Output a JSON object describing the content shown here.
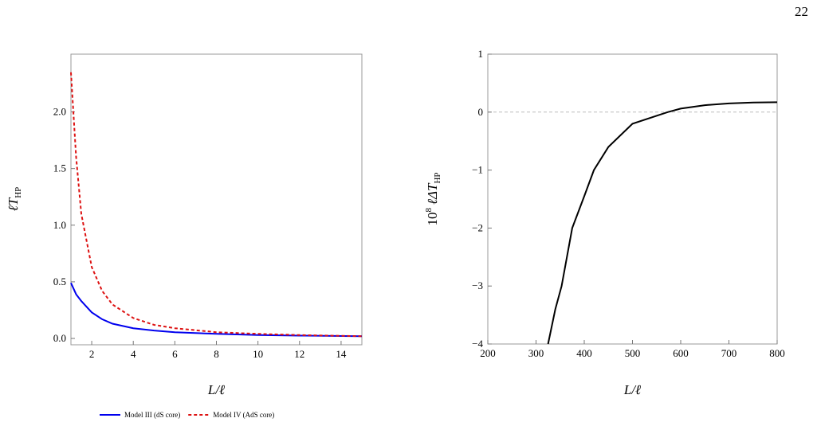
{
  "page_number": "22",
  "chart_data": [
    {
      "type": "line",
      "x_label": {
        "text": "L/ℓ"
      },
      "y_label": {
        "text": "ℓT",
        "sub": "HP"
      },
      "x": [
        1,
        1.25,
        1.5,
        2,
        2.5,
        3,
        4,
        5,
        6,
        8,
        10,
        12,
        15
      ],
      "series": [
        {
          "name": "Model III (dS core)",
          "color": "#0000ee",
          "style": "solid",
          "values": [
            0.49,
            0.39,
            0.33,
            0.23,
            0.17,
            0.13,
            0.09,
            0.07,
            0.055,
            0.04,
            0.03,
            0.025,
            0.02
          ]
        },
        {
          "name": "Model IV (AdS core)",
          "color": "#dd1111",
          "style": "dashed",
          "values": [
            2.35,
            1.6,
            1.1,
            0.63,
            0.42,
            0.3,
            0.18,
            0.12,
            0.09,
            0.055,
            0.04,
            0.03,
            0.02
          ]
        }
      ],
      "xlim": [
        1,
        15
      ],
      "xticks": [
        2,
        4,
        6,
        8,
        10,
        12,
        14
      ],
      "ylim": [
        -0.056,
        2.51
      ],
      "yticks": [
        {
          "value": 0,
          "label": "0.0"
        },
        {
          "value": 0.5,
          "label": "0.5"
        },
        {
          "value": 1,
          "label": "1.0"
        },
        {
          "value": 1.5,
          "label": "1.5"
        },
        {
          "value": 2,
          "label": "2.0"
        }
      ],
      "legend": "bottom"
    },
    {
      "type": "line",
      "x_label": {
        "text": "L/ℓ"
      },
      "y_label": {
        "text": "10",
        "sup": "8",
        "symbol": "ℓΔT",
        "sub": "HP"
      },
      "x": [
        325,
        340,
        353,
        375,
        400,
        420,
        450,
        500,
        573,
        600,
        650,
        700,
        750,
        800
      ],
      "series": [
        {
          "color": "#000000",
          "style": "solid",
          "values": [
            -4,
            -3.4,
            -3,
            -2,
            -1.45,
            -1,
            -0.6,
            -0.2,
            0,
            0.06,
            0.12,
            0.15,
            0.165,
            0.17
          ]
        }
      ],
      "xlim": [
        200,
        800
      ],
      "xticks": [
        200,
        300,
        400,
        500,
        600,
        700,
        800
      ],
      "ylim": [
        -4,
        1
      ],
      "yticks": [
        {
          "value": -4,
          "label": "−4"
        },
        {
          "value": -3,
          "label": "−3"
        },
        {
          "value": -2,
          "label": "−2"
        },
        {
          "value": -1,
          "label": "−1"
        },
        0,
        1
      ],
      "zero_line": true
    }
  ]
}
